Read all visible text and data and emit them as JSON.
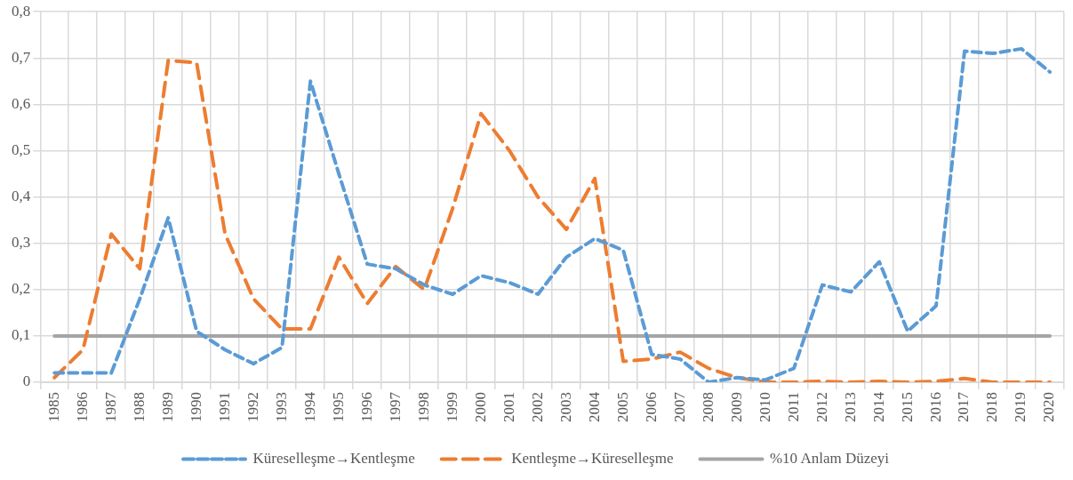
{
  "chart_data": {
    "type": "line",
    "categories": [
      "1985",
      "1986",
      "1987",
      "1988",
      "1989",
      "1990",
      "1991",
      "1992",
      "1993",
      "1994",
      "1995",
      "1996",
      "1997",
      "1998",
      "1999",
      "2000",
      "2001",
      "2002",
      "2003",
      "2004",
      "2005",
      "2006",
      "2007",
      "2008",
      "2009",
      "2010",
      "2011",
      "2012",
      "2013",
      "2014",
      "2015",
      "2016",
      "2017",
      "2018",
      "2019",
      "2020"
    ],
    "series": [
      {
        "name": "Küreselleşme→Kentleşme",
        "color": "#5b9bd5",
        "line_style": "dashed",
        "values": [
          0.02,
          0.02,
          0.02,
          0.18,
          0.355,
          0.11,
          0.07,
          0.04,
          0.075,
          0.65,
          0.45,
          0.255,
          0.245,
          0.21,
          0.19,
          0.23,
          0.215,
          0.19,
          0.27,
          0.31,
          0.285,
          0.06,
          0.05,
          0.0,
          0.01,
          0.005,
          0.03,
          0.21,
          0.195,
          0.26,
          0.11,
          0.165,
          0.715,
          0.71,
          0.72,
          0.67
        ]
      },
      {
        "name": "Kentleşme→Küreselleşme",
        "color": "#ed7d31",
        "line_style": "dashed",
        "values": [
          0.01,
          0.07,
          0.32,
          0.245,
          0.695,
          0.69,
          0.32,
          0.18,
          0.115,
          0.115,
          0.27,
          0.17,
          0.25,
          0.2,
          0.375,
          0.58,
          0.5,
          0.4,
          0.33,
          0.44,
          0.045,
          0.05,
          0.065,
          0.03,
          0.01,
          0.0,
          0.0,
          0.002,
          0.0,
          0.002,
          0.0,
          0.002,
          0.008,
          0.0,
          0.0,
          0.0
        ]
      },
      {
        "name": "%10 Anlam Düzeyi",
        "color": "#a5a5a5",
        "line_style": "solid",
        "values": [
          0.1,
          0.1,
          0.1,
          0.1,
          0.1,
          0.1,
          0.1,
          0.1,
          0.1,
          0.1,
          0.1,
          0.1,
          0.1,
          0.1,
          0.1,
          0.1,
          0.1,
          0.1,
          0.1,
          0.1,
          0.1,
          0.1,
          0.1,
          0.1,
          0.1,
          0.1,
          0.1,
          0.1,
          0.1,
          0.1,
          0.1,
          0.1,
          0.1,
          0.1,
          0.1,
          0.1
        ]
      }
    ],
    "ylim": [
      0,
      0.8
    ],
    "yticks": [
      0,
      {
        "value": 0.1,
        "label": "0,1"
      },
      {
        "value": 0.2,
        "label": "0,2"
      },
      {
        "value": 0.3,
        "label": "0,3"
      },
      {
        "value": 0.4,
        "label": "0,4"
      },
      {
        "value": 0.5,
        "label": "0,5"
      },
      {
        "value": 0.6,
        "label": "0,6"
      },
      {
        "value": 0.7,
        "label": "0,7"
      },
      {
        "value": 0.8,
        "label": "0,8"
      }
    ],
    "grid": true,
    "legend": "bottom",
    "marker": "none"
  }
}
